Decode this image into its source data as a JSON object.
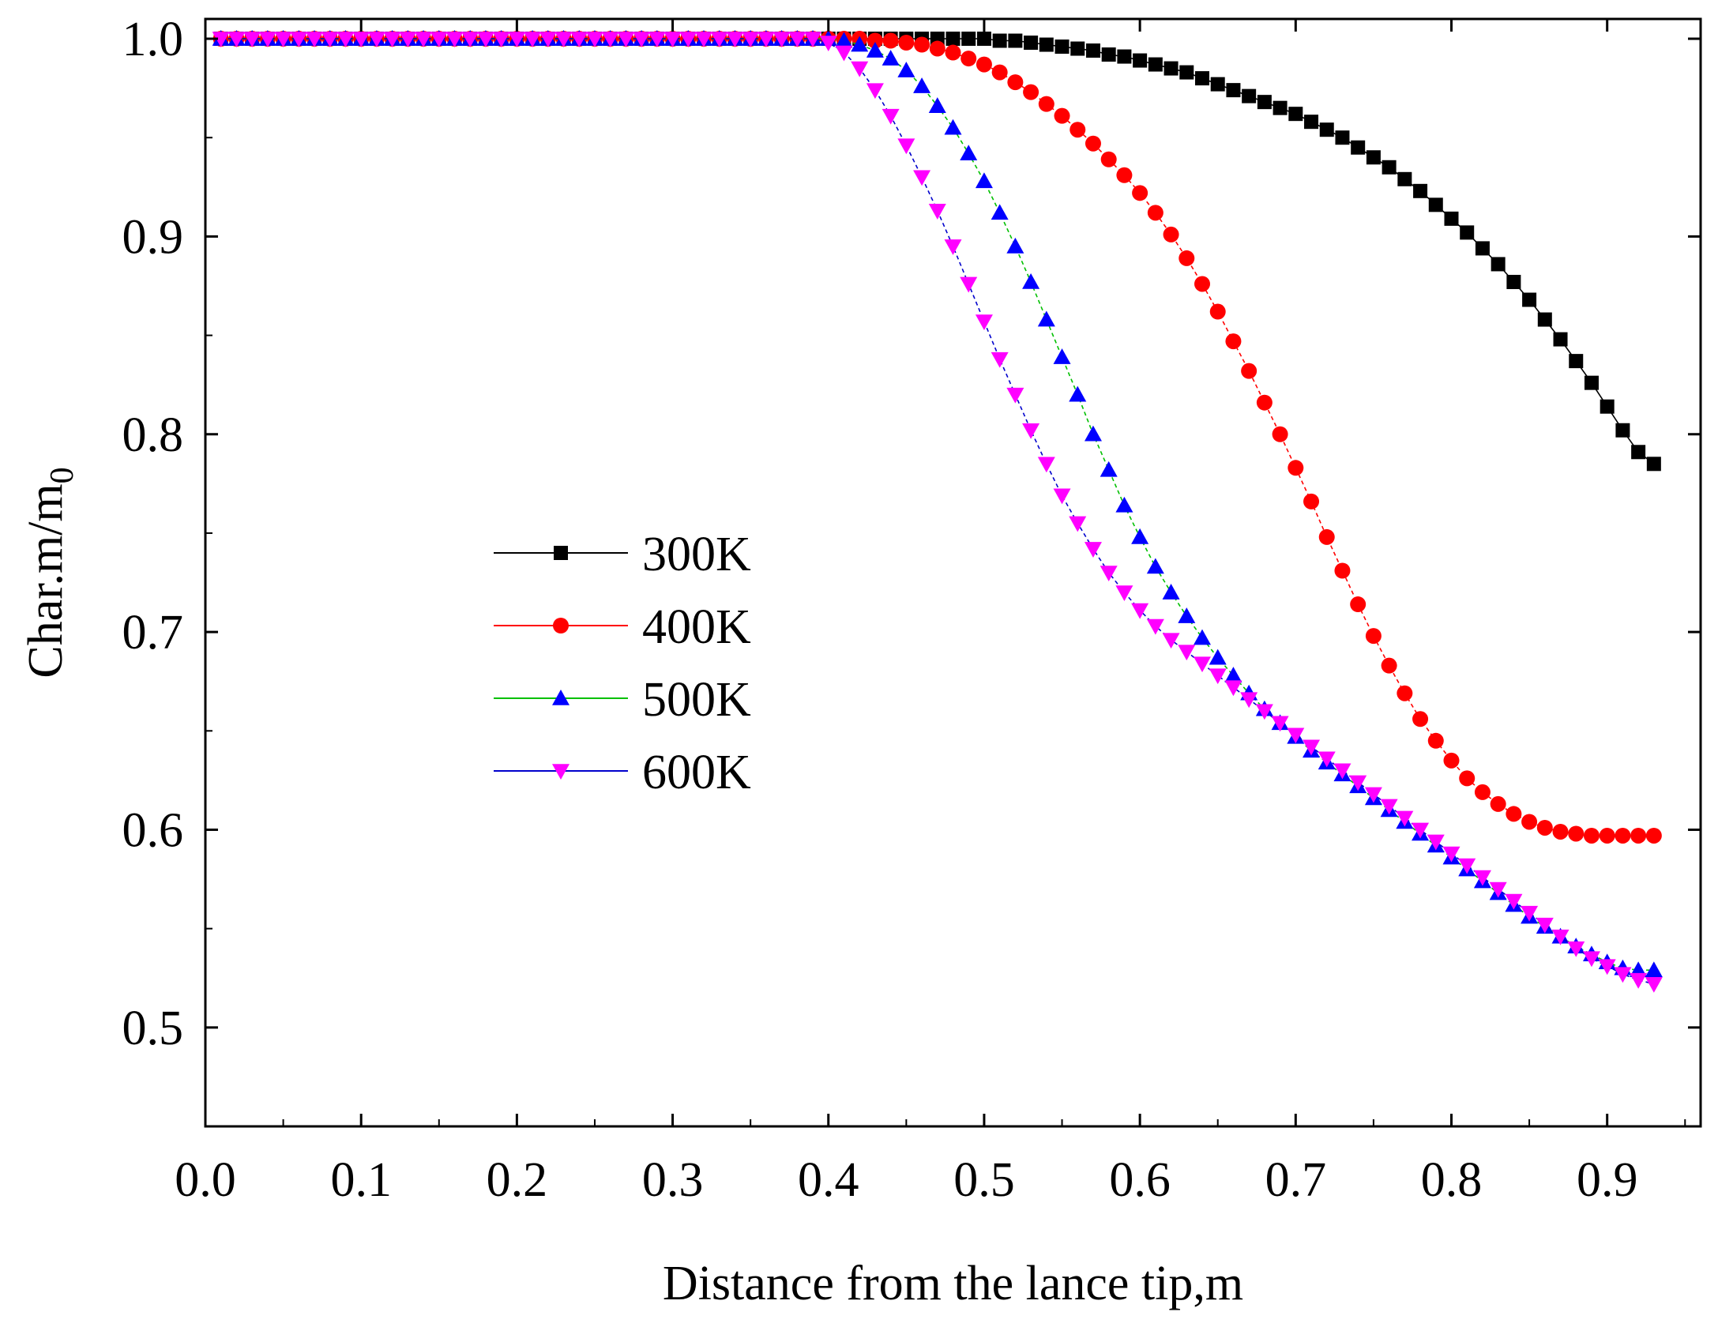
{
  "chart_data": {
    "type": "line",
    "title": "",
    "xlabel": "Distance from the lance tip,m",
    "ylabel": {
      "main": "Char.m/m",
      "subscript": "0"
    },
    "xlim": [
      0.0,
      0.96
    ],
    "ylim": [
      0.45,
      1.01
    ],
    "xticks": [
      "0.0",
      "0.1",
      "0.2",
      "0.3",
      "0.4",
      "0.5",
      "0.6",
      "0.7",
      "0.8",
      "0.9"
    ],
    "xtick_values": [
      0.0,
      0.1,
      0.2,
      0.3,
      0.4,
      0.5,
      0.6,
      0.7,
      0.8,
      0.9
    ],
    "yticks": [
      "0.5",
      "0.6",
      "0.7",
      "0.8",
      "0.9",
      "1.0"
    ],
    "ytick_values": [
      0.5,
      0.6,
      0.7,
      0.8,
      0.9,
      1.0
    ],
    "grid": false,
    "legend_position": "center-left",
    "x_start": 0.01,
    "x_step": 0.01,
    "series": [
      {
        "name": "300K",
        "color": "#000000",
        "marker": "square",
        "line_style": "solid",
        "values": [
          1.0,
          1.0,
          1.0,
          1.0,
          1.0,
          1.0,
          1.0,
          1.0,
          1.0,
          1.0,
          1.0,
          1.0,
          1.0,
          1.0,
          1.0,
          1.0,
          1.0,
          1.0,
          1.0,
          1.0,
          1.0,
          1.0,
          1.0,
          1.0,
          1.0,
          1.0,
          1.0,
          1.0,
          1.0,
          1.0,
          1.0,
          1.0,
          1.0,
          1.0,
          1.0,
          1.0,
          1.0,
          1.0,
          1.0,
          1.0,
          1.0,
          1.0,
          1.0,
          1.0,
          1.0,
          1.0,
          1.0,
          1.0,
          1.0,
          1.0,
          0.999,
          0.999,
          0.998,
          0.997,
          0.996,
          0.995,
          0.994,
          0.992,
          0.991,
          0.989,
          0.987,
          0.985,
          0.983,
          0.98,
          0.977,
          0.974,
          0.971,
          0.968,
          0.965,
          0.962,
          0.958,
          0.954,
          0.95,
          0.945,
          0.94,
          0.935,
          0.929,
          0.923,
          0.916,
          0.909,
          0.902,
          0.894,
          0.886,
          0.877,
          0.868,
          0.858,
          0.848,
          0.837,
          0.826,
          0.814,
          0.802,
          0.791,
          0.785
        ]
      },
      {
        "name": "400K",
        "color": "#ff0000",
        "marker": "circle",
        "line_style": "dashed",
        "values": [
          1.0,
          1.0,
          1.0,
          1.0,
          1.0,
          1.0,
          1.0,
          1.0,
          1.0,
          1.0,
          1.0,
          1.0,
          1.0,
          1.0,
          1.0,
          1.0,
          1.0,
          1.0,
          1.0,
          1.0,
          1.0,
          1.0,
          1.0,
          1.0,
          1.0,
          1.0,
          1.0,
          1.0,
          1.0,
          1.0,
          1.0,
          1.0,
          1.0,
          1.0,
          1.0,
          1.0,
          1.0,
          1.0,
          1.0,
          1.0,
          1.0,
          1.0,
          0.999,
          0.999,
          0.998,
          0.997,
          0.995,
          0.993,
          0.99,
          0.987,
          0.983,
          0.978,
          0.973,
          0.967,
          0.961,
          0.954,
          0.947,
          0.939,
          0.931,
          0.922,
          0.912,
          0.901,
          0.889,
          0.876,
          0.862,
          0.847,
          0.832,
          0.816,
          0.8,
          0.783,
          0.766,
          0.748,
          0.731,
          0.714,
          0.698,
          0.683,
          0.669,
          0.656,
          0.645,
          0.635,
          0.626,
          0.619,
          0.613,
          0.608,
          0.604,
          0.601,
          0.599,
          0.598,
          0.597,
          0.597,
          0.597,
          0.597,
          0.597
        ]
      },
      {
        "name": "500K",
        "color": "#0000ff",
        "marker": "triangle-up",
        "line_color": "#00c000",
        "line_style": "dashed",
        "values": [
          1.0,
          1.0,
          1.0,
          1.0,
          1.0,
          1.0,
          1.0,
          1.0,
          1.0,
          1.0,
          1.0,
          1.0,
          1.0,
          1.0,
          1.0,
          1.0,
          1.0,
          1.0,
          1.0,
          1.0,
          1.0,
          1.0,
          1.0,
          1.0,
          1.0,
          1.0,
          1.0,
          1.0,
          1.0,
          1.0,
          1.0,
          1.0,
          1.0,
          1.0,
          1.0,
          1.0,
          1.0,
          1.0,
          1.0,
          1.0,
          0.999,
          0.997,
          0.994,
          0.99,
          0.984,
          0.976,
          0.966,
          0.955,
          0.942,
          0.928,
          0.912,
          0.895,
          0.877,
          0.858,
          0.839,
          0.82,
          0.8,
          0.782,
          0.764,
          0.748,
          0.733,
          0.72,
          0.708,
          0.697,
          0.687,
          0.678,
          0.669,
          0.661,
          0.654,
          0.647,
          0.64,
          0.634,
          0.628,
          0.622,
          0.616,
          0.61,
          0.604,
          0.598,
          0.592,
          0.586,
          0.58,
          0.574,
          0.568,
          0.562,
          0.556,
          0.551,
          0.546,
          0.541,
          0.537,
          0.533,
          0.53,
          0.529,
          0.529
        ]
      },
      {
        "name": "600K",
        "color": "#ff00ff",
        "marker": "triangle-down",
        "line_color": "#0000cc",
        "line_style": "dashed",
        "values": [
          1.0,
          1.0,
          1.0,
          1.0,
          1.0,
          1.0,
          1.0,
          1.0,
          1.0,
          1.0,
          1.0,
          1.0,
          1.0,
          1.0,
          1.0,
          1.0,
          1.0,
          1.0,
          1.0,
          1.0,
          1.0,
          1.0,
          1.0,
          1.0,
          1.0,
          1.0,
          1.0,
          1.0,
          1.0,
          1.0,
          1.0,
          1.0,
          1.0,
          1.0,
          1.0,
          1.0,
          1.0,
          1.0,
          1.0,
          0.998,
          0.993,
          0.985,
          0.974,
          0.961,
          0.946,
          0.93,
          0.913,
          0.895,
          0.876,
          0.857,
          0.838,
          0.82,
          0.802,
          0.785,
          0.769,
          0.755,
          0.742,
          0.73,
          0.72,
          0.711,
          0.703,
          0.696,
          0.69,
          0.684,
          0.678,
          0.672,
          0.666,
          0.66,
          0.654,
          0.648,
          0.642,
          0.636,
          0.63,
          0.624,
          0.618,
          0.612,
          0.606,
          0.6,
          0.594,
          0.588,
          0.582,
          0.576,
          0.57,
          0.564,
          0.558,
          0.552,
          0.546,
          0.54,
          0.535,
          0.531,
          0.527,
          0.524,
          0.522
        ]
      }
    ]
  }
}
